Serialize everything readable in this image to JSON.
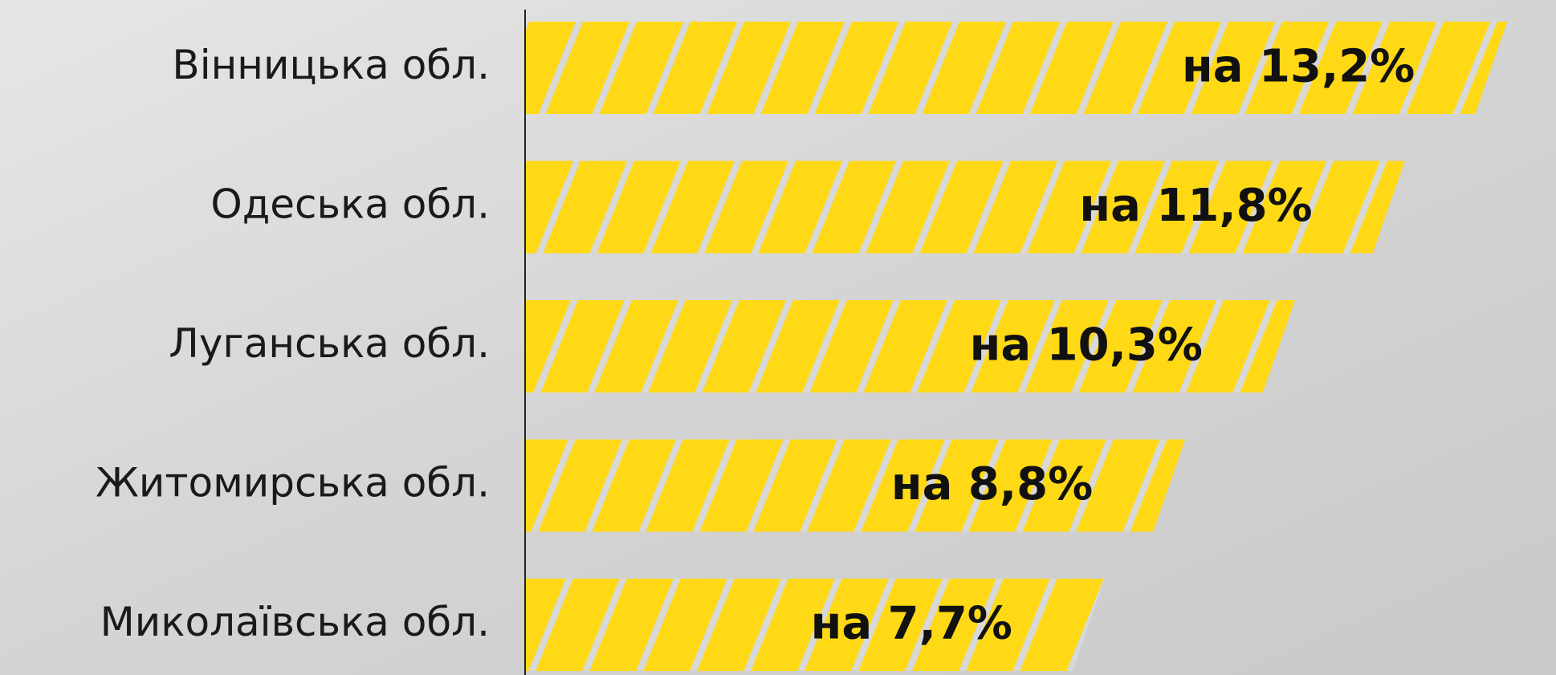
{
  "chart_data": {
    "type": "barh",
    "categories": [
      "Вінницька обл.",
      "Одеська обл.",
      "Луганська обл.",
      "Житомирська обл.",
      "Миколаївська обл."
    ],
    "values": [
      13.2,
      11.8,
      10.3,
      8.8,
      7.7
    ],
    "value_labels": [
      "на 13,2%",
      "на 11,8%",
      "на 10,3%",
      "на 8,8%",
      "на 7,7%"
    ],
    "color": "#ffd916",
    "xlim": [
      0,
      13.8
    ]
  }
}
